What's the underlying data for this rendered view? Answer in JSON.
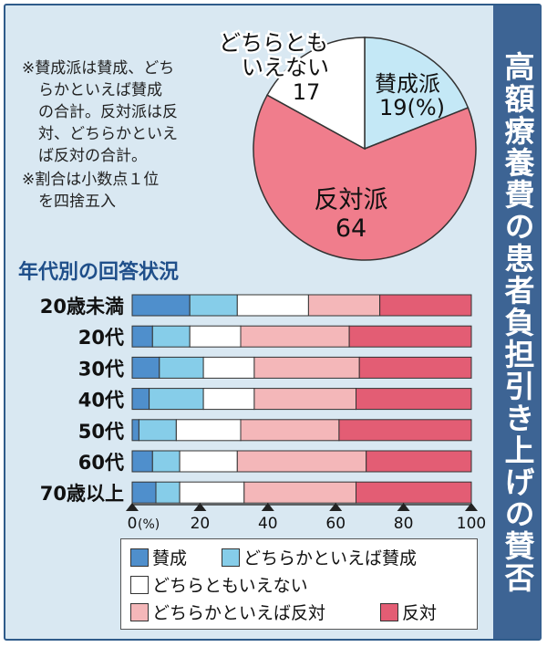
{
  "title": "高額療養費の患者負担引き上げの賛否",
  "notes": [
    "※賛成派は賛成、どち",
    "らかといえば賛成",
    "の合計。反対派は反",
    "対、どちらかといえ",
    "ば反対の合計。",
    "※割合は小数点１位",
    "を四捨五入"
  ],
  "colors": {
    "agree": "#4f8fcc",
    "somewhat_agree": "#86cde9",
    "neutral": "#ffffff",
    "somewhat_disagree": "#f4b7b9",
    "disagree": "#e35d74",
    "pie_agree": "#c4e8f6",
    "pie_neutral": "#ffffff",
    "pie_disagree": "#f07d8c"
  },
  "chart_data": [
    {
      "type": "pie",
      "slices": [
        {
          "label_lines": [
            "賛成派",
            "19(%)"
          ],
          "value": 19,
          "color": "#c4e8f6"
        },
        {
          "label_lines": [
            "反対派",
            "64"
          ],
          "value": 64,
          "color": "#f07d8c"
        },
        {
          "label_lines": [
            "どちらとも",
            "いえない",
            "17"
          ],
          "value": 17,
          "color": "#ffffff"
        }
      ]
    },
    {
      "type": "bar",
      "orientation": "horizontal",
      "stacked": true,
      "title": "年代別の回答状況",
      "categories": [
        "20歳未満",
        "20代",
        "30代",
        "40代",
        "50代",
        "60代",
        "70歳以上"
      ],
      "series": [
        {
          "name": "賛成",
          "color": "#4f8fcc",
          "values": [
            17,
            6,
            8,
            5,
            2,
            6,
            7
          ]
        },
        {
          "name": "どちらかといえば賛成",
          "color": "#86cde9",
          "values": [
            14,
            11,
            13,
            16,
            11,
            8,
            7
          ]
        },
        {
          "name": "どちらともいえない",
          "color": "#ffffff",
          "values": [
            21,
            15,
            15,
            15,
            19,
            17,
            19
          ]
        },
        {
          "name": "どちらかといえば反対",
          "color": "#f4b7b9",
          "values": [
            21,
            32,
            31,
            30,
            29,
            38,
            33
          ]
        },
        {
          "name": "反対",
          "color": "#e35d74",
          "values": [
            27,
            36,
            33,
            34,
            39,
            31,
            34
          ]
        }
      ],
      "xlim": [
        0,
        100
      ],
      "x_ticks": [
        "0",
        "20",
        "40",
        "60",
        "80",
        "100"
      ],
      "x_unit": "(%)",
      "legend_position": "bottom"
    }
  ]
}
